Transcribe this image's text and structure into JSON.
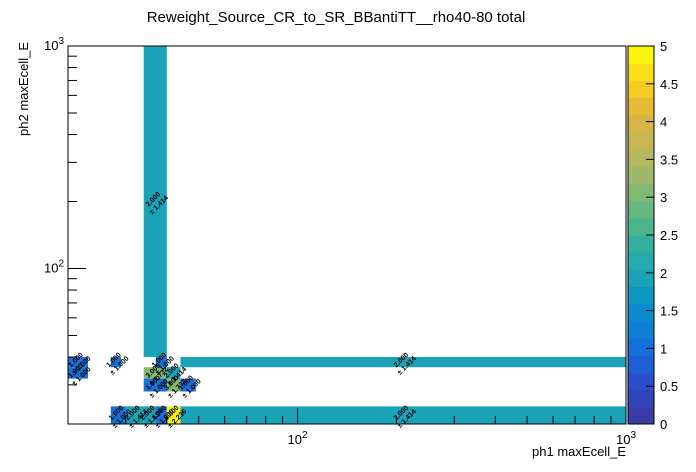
{
  "chart_data": {
    "type": "heatmap",
    "title": "Reweight_Source_CR_to_SR_BBantiTT__rho40-80 total",
    "xlabel": "ph1 maxEcell_E",
    "ylabel": "ph2 maxEcell_E",
    "x_scale": "log",
    "y_scale": "log",
    "xlim": [
      20,
      1000
    ],
    "ylim": [
      20,
      1000
    ],
    "x_tick_labels": [
      {
        "base": "10",
        "exp": "2",
        "value": 100
      },
      {
        "base": "10",
        "exp": "3",
        "value": 1000
      }
    ],
    "y_tick_labels": [
      {
        "base": "10",
        "exp": "2",
        "value": 100
      },
      {
        "base": "10",
        "exp": "3",
        "value": 1000
      }
    ],
    "zlim": [
      0,
      5
    ],
    "z_tick_labels": [
      "0",
      "0.5",
      "1",
      "1.5",
      "2",
      "2.5",
      "3",
      "3.5",
      "4",
      "4.5",
      "5"
    ],
    "palette": [
      "#3b3ba6",
      "#3143b6",
      "#2a4fc9",
      "#1e5fd6",
      "#1670d9",
      "#0f7fd4",
      "#0a8ccc",
      "#0d98c3",
      "#1aa2b8",
      "#27aaae",
      "#35b09e",
      "#4cb48e",
      "#66b880",
      "#82ba74",
      "#9cba69",
      "#b4b95e",
      "#c6b754",
      "#d7b548",
      "#e8bb37",
      "#f5cb24",
      "#fadf1a",
      "#f9f50e"
    ],
    "cells": [
      {
        "x0": 34,
        "x1": 40,
        "y0": 40,
        "y1": 1000,
        "value": 2,
        "label": "2.000",
        "err": "± 1.414"
      },
      {
        "x0": 20,
        "x1": 23,
        "y0": 36,
        "y1": 40,
        "value": 1,
        "label": "1.000",
        "err": "± 1.000"
      },
      {
        "x0": 27,
        "x1": 29,
        "y0": 36,
        "y1": 40,
        "value": 1,
        "label": "1.000",
        "err": "± 1.000"
      },
      {
        "x0": 37,
        "x1": 40,
        "y0": 36,
        "y1": 40,
        "value": 1,
        "label": "1.000",
        "err": "± 1.000"
      },
      {
        "x0": 44,
        "x1": 1000,
        "y0": 36,
        "y1": 40,
        "value": 2,
        "label": "2.000",
        "err": "± 1.414"
      },
      {
        "x0": 20,
        "x1": 23,
        "y0": 32,
        "y1": 36,
        "value": 1,
        "label": "1.000",
        "err": "± 1.000"
      },
      {
        "x0": 34,
        "x1": 40,
        "y0": 32,
        "y1": 36,
        "value": 3,
        "label": "3.000",
        "err": "± 1.732"
      },
      {
        "x0": 40,
        "x1": 44,
        "y0": 32,
        "y1": 36,
        "value": 2,
        "label": "2.000",
        "err": "± 1.414"
      },
      {
        "x0": 34,
        "x1": 40,
        "y0": 28,
        "y1": 32,
        "value": 1,
        "label": "1.000",
        "err": "± 1.000"
      },
      {
        "x0": 40,
        "x1": 44,
        "y0": 28,
        "y1": 32,
        "value": 3,
        "label": "3.000",
        "err": "± 1.732"
      },
      {
        "x0": 44,
        "x1": 49,
        "y0": 28,
        "y1": 32,
        "value": 1,
        "label": "1.000",
        "err": "± 1.000"
      },
      {
        "x0": 27,
        "x1": 30,
        "y0": 20,
        "y1": 24,
        "value": 1,
        "label": "1.000",
        "err": "± 1.000"
      },
      {
        "x0": 30,
        "x1": 34,
        "y0": 20,
        "y1": 24,
        "value": 2,
        "label": "2.000",
        "err": "± 1.414"
      },
      {
        "x0": 34,
        "x1": 37,
        "y0": 20,
        "y1": 24,
        "value": 2,
        "label": "2.000",
        "err": "± 1.414"
      },
      {
        "x0": 37,
        "x1": 40,
        "y0": 20,
        "y1": 24,
        "value": 1,
        "label": "1.000",
        "err": "± 1.000"
      },
      {
        "x0": 40,
        "x1": 44,
        "y0": 20,
        "y1": 24,
        "value": 5,
        "label": "5.000",
        "err": "± 2.236"
      },
      {
        "x0": 44,
        "x1": 1000,
        "y0": 20,
        "y1": 24,
        "value": 2,
        "label": "2.000",
        "err": "± 1.414"
      }
    ]
  }
}
